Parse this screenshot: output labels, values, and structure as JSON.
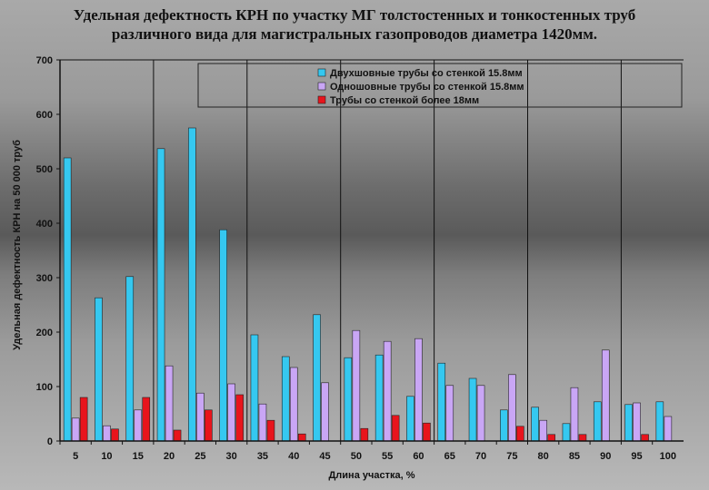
{
  "chart_data": {
    "type": "bar",
    "title_line1": "Удельная дефектность КРН  по участку МГ толстостенных и тонкостенных труб",
    "title_line2": "различного вида для магистральных газопроводов диаметра 1420мм.",
    "xlabel": "Длина участка, %",
    "ylabel": "Удельная дефектность КРН на 50 000 труб",
    "ylim": [
      0,
      700
    ],
    "yticks": [
      0,
      100,
      200,
      300,
      400,
      500,
      600,
      700
    ],
    "categories": [
      "5",
      "10",
      "15",
      "20",
      "25",
      "30",
      "35",
      "40",
      "45",
      "50",
      "55",
      "60",
      "65",
      "70",
      "75",
      "80",
      "85",
      "90",
      "95",
      "100"
    ],
    "legend_position": "top-right",
    "series": [
      {
        "name": "Двухшовные трубы со стенкой 15.8мм",
        "color": "#35c8f0",
        "values": [
          520,
          263,
          302,
          537,
          575,
          388,
          195,
          155,
          232,
          153,
          158,
          82,
          143,
          115,
          57,
          62,
          32,
          72,
          67,
          72
        ]
      },
      {
        "name": "Одношовные трубы со стенкой 15.8мм",
        "color": "#c9a6f5",
        "values": [
          42,
          28,
          57,
          138,
          88,
          105,
          68,
          135,
          107,
          203,
          183,
          188,
          102,
          102,
          122,
          38,
          98,
          167,
          70,
          45
        ]
      },
      {
        "name": "Трубы со стенкой более 18мм",
        "color": "#e8141c",
        "values": [
          80,
          22,
          80,
          20,
          57,
          85,
          38,
          13,
          0,
          23,
          47,
          33,
          0,
          0,
          27,
          12,
          12,
          0,
          12,
          0
        ]
      }
    ]
  }
}
